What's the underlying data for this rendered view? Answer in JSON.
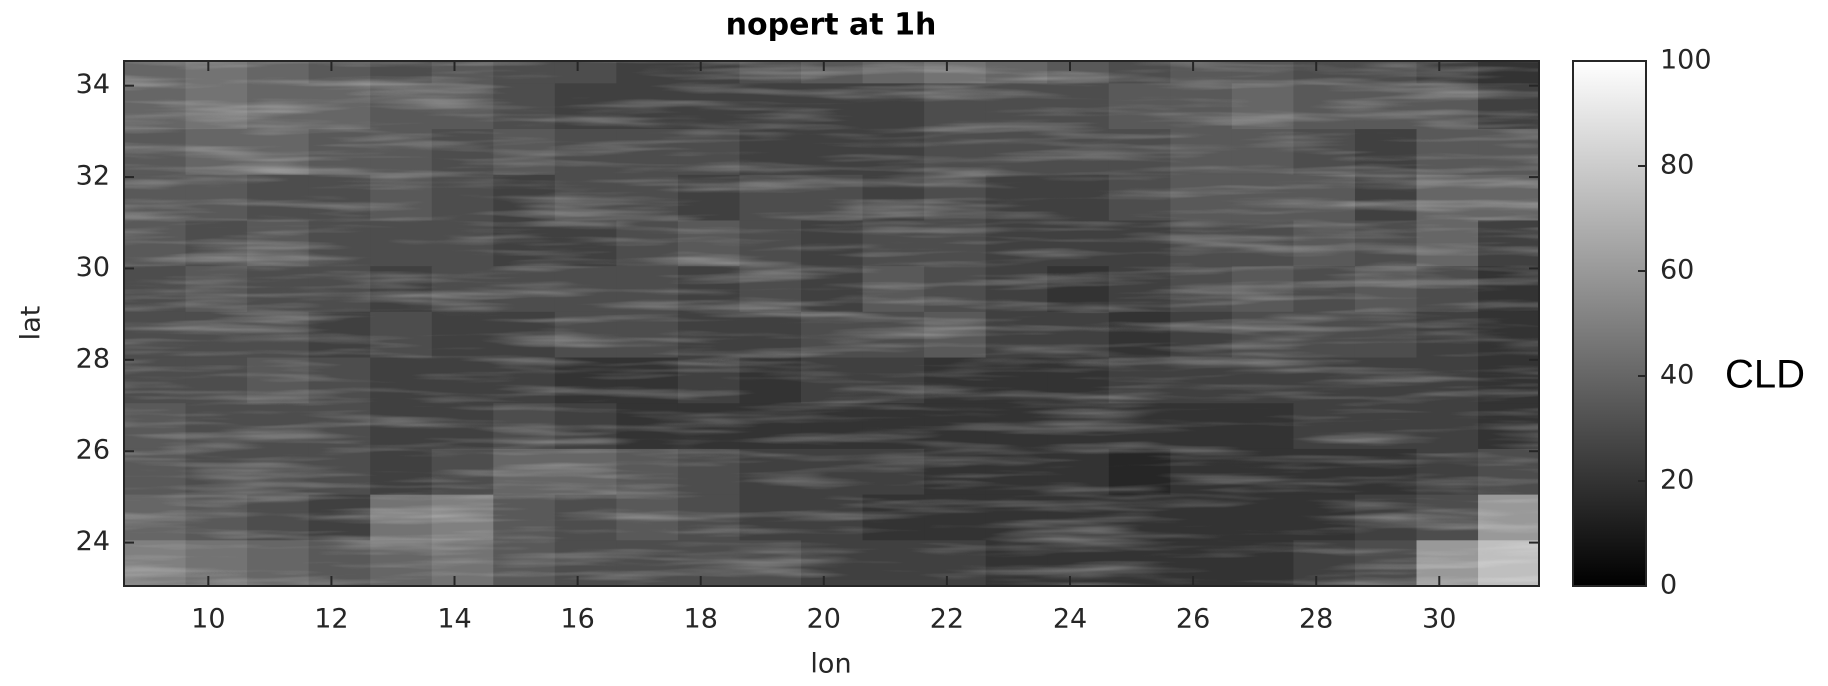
{
  "chart_data": {
    "type": "heatmap",
    "title": "nopert at 1h",
    "xlabel": "lon",
    "ylabel": "lat",
    "colorbar_label": "CLD",
    "colormap": [
      "#000000",
      "#ffffff"
    ],
    "xlim": [
      8.63,
      31.62
    ],
    "ylim": [
      23.05,
      34.54
    ],
    "xticks": [
      10,
      12,
      14,
      16,
      18,
      20,
      22,
      24,
      26,
      28,
      30
    ],
    "yticks": [
      24,
      26,
      28,
      30,
      32,
      34
    ],
    "clim": [
      0,
      100
    ],
    "cticks": [
      0,
      20,
      40,
      60,
      80,
      100
    ],
    "x": [
      9.13,
      10.13,
      11.13,
      12.13,
      13.13,
      14.13,
      15.13,
      16.13,
      17.13,
      18.13,
      19.13,
      20.13,
      21.13,
      22.13,
      23.13,
      24.13,
      25.13,
      26.13,
      27.13,
      28.13,
      29.13,
      30.13,
      31.13
    ],
    "y": [
      34.55,
      33.55,
      32.55,
      31.55,
      30.55,
      29.55,
      28.55,
      27.55,
      26.55,
      25.55,
      24.55,
      23.55
    ],
    "z": [
      [
        40,
        45,
        40,
        35,
        30,
        35,
        30,
        30,
        25,
        25,
        30,
        35,
        40,
        45,
        40,
        35,
        30,
        35,
        35,
        30,
        30,
        25,
        20
      ],
      [
        40,
        45,
        40,
        40,
        35,
        35,
        30,
        25,
        25,
        25,
        25,
        25,
        25,
        30,
        30,
        30,
        35,
        35,
        40,
        35,
        35,
        35,
        25
      ],
      [
        35,
        40,
        40,
        35,
        35,
        30,
        35,
        30,
        30,
        30,
        25,
        25,
        25,
        30,
        30,
        30,
        30,
        35,
        35,
        30,
        25,
        35,
        35
      ],
      [
        35,
        35,
        30,
        30,
        35,
        30,
        25,
        30,
        30,
        25,
        30,
        30,
        25,
        30,
        25,
        25,
        30,
        35,
        35,
        35,
        25,
        40,
        40
      ],
      [
        35,
        30,
        35,
        30,
        30,
        30,
        25,
        25,
        30,
        35,
        30,
        25,
        30,
        30,
        25,
        25,
        25,
        30,
        30,
        35,
        30,
        40,
        25
      ],
      [
        30,
        35,
        30,
        30,
        25,
        30,
        30,
        30,
        30,
        25,
        30,
        25,
        35,
        30,
        25,
        20,
        25,
        30,
        35,
        30,
        35,
        30,
        20
      ],
      [
        30,
        30,
        30,
        25,
        30,
        25,
        25,
        30,
        30,
        25,
        25,
        30,
        30,
        35,
        25,
        25,
        20,
        25,
        30,
        30,
        30,
        25,
        20
      ],
      [
        30,
        30,
        35,
        30,
        25,
        25,
        25,
        20,
        20,
        25,
        20,
        25,
        25,
        20,
        20,
        20,
        25,
        25,
        25,
        25,
        25,
        25,
        20
      ],
      [
        35,
        30,
        30,
        30,
        25,
        25,
        30,
        25,
        20,
        20,
        20,
        20,
        20,
        20,
        20,
        20,
        20,
        20,
        20,
        25,
        25,
        25,
        20
      ],
      [
        35,
        30,
        30,
        30,
        25,
        30,
        40,
        40,
        35,
        30,
        25,
        25,
        25,
        20,
        20,
        20,
        15,
        20,
        20,
        20,
        20,
        25,
        30
      ],
      [
        40,
        35,
        30,
        25,
        45,
        50,
        35,
        30,
        35,
        30,
        25,
        25,
        20,
        20,
        20,
        20,
        20,
        20,
        20,
        20,
        25,
        30,
        60
      ],
      [
        50,
        45,
        40,
        35,
        40,
        45,
        35,
        30,
        30,
        30,
        30,
        25,
        25,
        25,
        20,
        20,
        20,
        20,
        20,
        25,
        30,
        60,
        75
      ]
    ]
  }
}
